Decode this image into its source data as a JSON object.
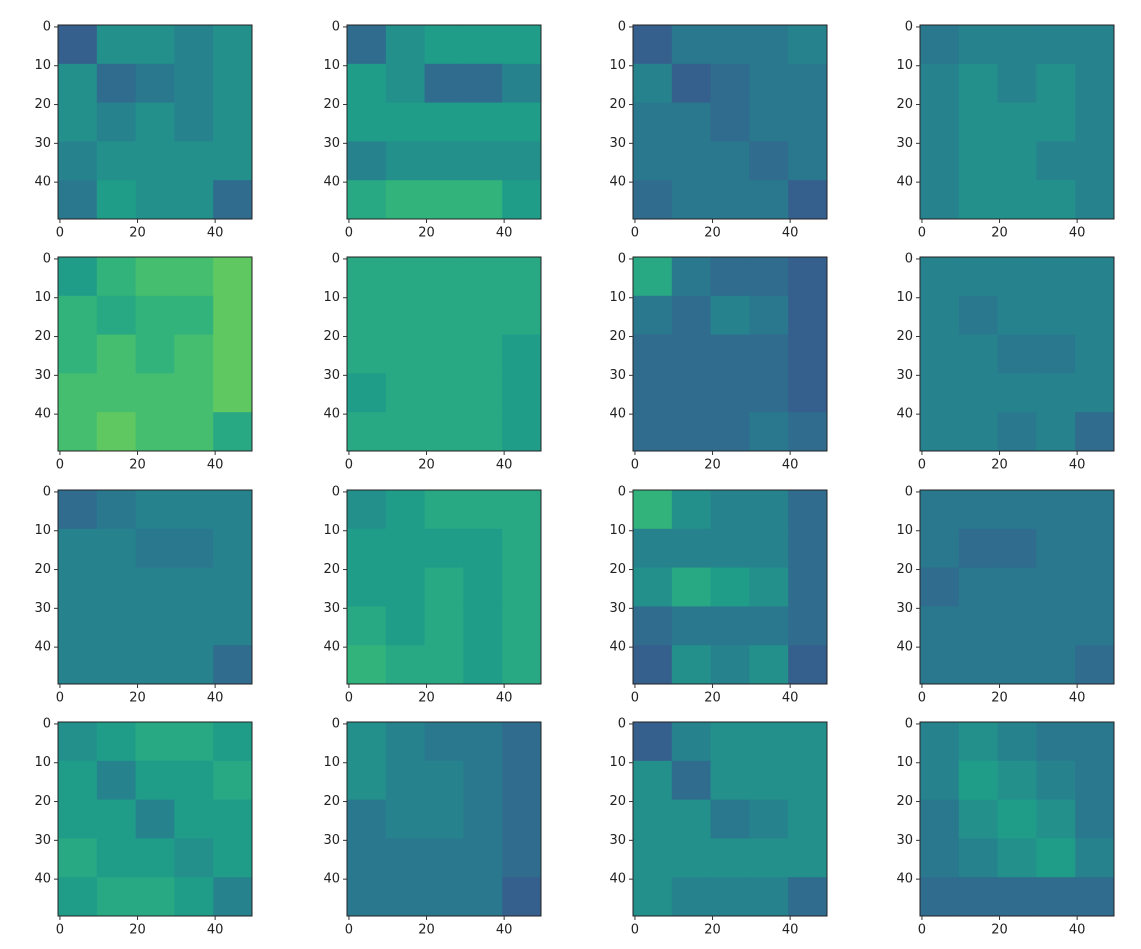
{
  "chart_data": [
    {
      "type": "heatmap",
      "colormap": "viridis",
      "xlim": [
        -0.5,
        49.5
      ],
      "ylim": [
        49.5,
        -0.5
      ],
      "xticks": [
        0,
        20,
        40
      ],
      "yticks": [
        0,
        10,
        20,
        30,
        40
      ],
      "values": [
        [
          0.3,
          0.5,
          0.5,
          0.45,
          0.5
        ],
        [
          0.5,
          0.35,
          0.4,
          0.45,
          0.5
        ],
        [
          0.5,
          0.45,
          0.5,
          0.45,
          0.5
        ],
        [
          0.45,
          0.5,
          0.5,
          0.5,
          0.5
        ],
        [
          0.4,
          0.55,
          0.5,
          0.5,
          0.35
        ]
      ]
    },
    {
      "type": "heatmap",
      "colormap": "viridis",
      "xlim": [
        -0.5,
        49.5
      ],
      "ylim": [
        49.5,
        -0.5
      ],
      "xticks": [
        0,
        20,
        40
      ],
      "yticks": [
        0,
        10,
        20,
        30,
        40
      ],
      "values": [
        [
          0.35,
          0.5,
          0.55,
          0.55,
          0.55
        ],
        [
          0.55,
          0.5,
          0.35,
          0.35,
          0.45
        ],
        [
          0.55,
          0.55,
          0.55,
          0.55,
          0.55
        ],
        [
          0.45,
          0.5,
          0.5,
          0.5,
          0.5
        ],
        [
          0.6,
          0.65,
          0.65,
          0.65,
          0.55
        ]
      ]
    },
    {
      "type": "heatmap",
      "colormap": "viridis",
      "xlim": [
        -0.5,
        49.5
      ],
      "ylim": [
        49.5,
        -0.5
      ],
      "xticks": [
        0,
        20,
        40
      ],
      "yticks": [
        0,
        10,
        20,
        30,
        40
      ],
      "values": [
        [
          0.3,
          0.4,
          0.4,
          0.4,
          0.45
        ],
        [
          0.45,
          0.3,
          0.35,
          0.4,
          0.4
        ],
        [
          0.4,
          0.4,
          0.35,
          0.4,
          0.4
        ],
        [
          0.4,
          0.4,
          0.4,
          0.35,
          0.4
        ],
        [
          0.35,
          0.4,
          0.4,
          0.4,
          0.3
        ]
      ]
    },
    {
      "type": "heatmap",
      "colormap": "viridis",
      "xlim": [
        -0.5,
        49.5
      ],
      "ylim": [
        49.5,
        -0.5
      ],
      "xticks": [
        0,
        20,
        40
      ],
      "yticks": [
        0,
        10,
        20,
        30,
        40
      ],
      "values": [
        [
          0.4,
          0.45,
          0.45,
          0.45,
          0.45
        ],
        [
          0.45,
          0.5,
          0.45,
          0.5,
          0.45
        ],
        [
          0.45,
          0.5,
          0.5,
          0.5,
          0.45
        ],
        [
          0.45,
          0.5,
          0.5,
          0.45,
          0.45
        ],
        [
          0.45,
          0.5,
          0.5,
          0.5,
          0.45
        ]
      ]
    },
    {
      "type": "heatmap",
      "colormap": "viridis",
      "xlim": [
        -0.5,
        49.5
      ],
      "ylim": [
        49.5,
        -0.5
      ],
      "xticks": [
        0,
        20,
        40
      ],
      "yticks": [
        0,
        10,
        20,
        30,
        40
      ],
      "values": [
        [
          0.55,
          0.65,
          0.7,
          0.7,
          0.75
        ],
        [
          0.65,
          0.6,
          0.65,
          0.65,
          0.75
        ],
        [
          0.65,
          0.7,
          0.65,
          0.7,
          0.75
        ],
        [
          0.7,
          0.7,
          0.7,
          0.7,
          0.75
        ],
        [
          0.7,
          0.75,
          0.7,
          0.7,
          0.6
        ]
      ]
    },
    {
      "type": "heatmap",
      "colormap": "viridis",
      "xlim": [
        -0.5,
        49.5
      ],
      "ylim": [
        49.5,
        -0.5
      ],
      "xticks": [
        0,
        20,
        40
      ],
      "yticks": [
        0,
        10,
        20,
        30,
        40
      ],
      "values": [
        [
          0.6,
          0.6,
          0.6,
          0.6,
          0.6
        ],
        [
          0.6,
          0.6,
          0.6,
          0.6,
          0.6
        ],
        [
          0.6,
          0.6,
          0.6,
          0.6,
          0.55
        ],
        [
          0.55,
          0.6,
          0.6,
          0.6,
          0.55
        ],
        [
          0.6,
          0.6,
          0.6,
          0.6,
          0.55
        ]
      ]
    },
    {
      "type": "heatmap",
      "colormap": "viridis",
      "xlim": [
        -0.5,
        49.5
      ],
      "ylim": [
        49.5,
        -0.5
      ],
      "xticks": [
        0,
        20,
        40
      ],
      "yticks": [
        0,
        10,
        20,
        30,
        40
      ],
      "values": [
        [
          0.6,
          0.4,
          0.35,
          0.35,
          0.3
        ],
        [
          0.4,
          0.35,
          0.45,
          0.4,
          0.3
        ],
        [
          0.35,
          0.35,
          0.35,
          0.35,
          0.3
        ],
        [
          0.35,
          0.35,
          0.35,
          0.35,
          0.3
        ],
        [
          0.35,
          0.35,
          0.35,
          0.4,
          0.35
        ]
      ]
    },
    {
      "type": "heatmap",
      "colormap": "viridis",
      "xlim": [
        -0.5,
        49.5
      ],
      "ylim": [
        49.5,
        -0.5
      ],
      "xticks": [
        0,
        20,
        40
      ],
      "yticks": [
        0,
        10,
        20,
        30,
        40
      ],
      "values": [
        [
          0.45,
          0.45,
          0.45,
          0.45,
          0.45
        ],
        [
          0.45,
          0.4,
          0.45,
          0.45,
          0.45
        ],
        [
          0.45,
          0.45,
          0.4,
          0.4,
          0.45
        ],
        [
          0.45,
          0.45,
          0.45,
          0.45,
          0.45
        ],
        [
          0.45,
          0.45,
          0.4,
          0.45,
          0.35
        ]
      ]
    },
    {
      "type": "heatmap",
      "colormap": "viridis",
      "xlim": [
        -0.5,
        49.5
      ],
      "ylim": [
        49.5,
        -0.5
      ],
      "xticks": [
        0,
        20,
        40
      ],
      "yticks": [
        0,
        10,
        20,
        30,
        40
      ],
      "values": [
        [
          0.35,
          0.4,
          0.45,
          0.45,
          0.45
        ],
        [
          0.45,
          0.45,
          0.4,
          0.4,
          0.45
        ],
        [
          0.45,
          0.45,
          0.45,
          0.45,
          0.45
        ],
        [
          0.45,
          0.45,
          0.45,
          0.45,
          0.45
        ],
        [
          0.45,
          0.45,
          0.45,
          0.45,
          0.35
        ]
      ]
    },
    {
      "type": "heatmap",
      "colormap": "viridis",
      "xlim": [
        -0.5,
        49.5
      ],
      "ylim": [
        49.5,
        -0.5
      ],
      "xticks": [
        0,
        20,
        40
      ],
      "yticks": [
        0,
        10,
        20,
        30,
        40
      ],
      "values": [
        [
          0.5,
          0.55,
          0.6,
          0.6,
          0.6
        ],
        [
          0.55,
          0.55,
          0.55,
          0.55,
          0.6
        ],
        [
          0.55,
          0.55,
          0.6,
          0.55,
          0.6
        ],
        [
          0.6,
          0.55,
          0.6,
          0.55,
          0.6
        ],
        [
          0.65,
          0.6,
          0.6,
          0.55,
          0.6
        ]
      ]
    },
    {
      "type": "heatmap",
      "colormap": "viridis",
      "xlim": [
        -0.5,
        49.5
      ],
      "ylim": [
        49.5,
        -0.5
      ],
      "xticks": [
        0,
        20,
        40
      ],
      "yticks": [
        0,
        10,
        20,
        30,
        40
      ],
      "values": [
        [
          0.65,
          0.5,
          0.45,
          0.45,
          0.35
        ],
        [
          0.45,
          0.45,
          0.45,
          0.45,
          0.35
        ],
        [
          0.5,
          0.6,
          0.55,
          0.5,
          0.35
        ],
        [
          0.35,
          0.4,
          0.4,
          0.4,
          0.35
        ],
        [
          0.3,
          0.5,
          0.45,
          0.5,
          0.3
        ]
      ]
    },
    {
      "type": "heatmap",
      "colormap": "viridis",
      "xlim": [
        -0.5,
        49.5
      ],
      "ylim": [
        49.5,
        -0.5
      ],
      "xticks": [
        0,
        20,
        40
      ],
      "yticks": [
        0,
        10,
        20,
        30,
        40
      ],
      "values": [
        [
          0.4,
          0.4,
          0.4,
          0.4,
          0.4
        ],
        [
          0.4,
          0.35,
          0.35,
          0.4,
          0.4
        ],
        [
          0.35,
          0.4,
          0.4,
          0.4,
          0.4
        ],
        [
          0.4,
          0.4,
          0.4,
          0.4,
          0.4
        ],
        [
          0.4,
          0.4,
          0.4,
          0.4,
          0.35
        ]
      ]
    },
    {
      "type": "heatmap",
      "colormap": "viridis",
      "xlim": [
        -0.5,
        49.5
      ],
      "ylim": [
        49.5,
        -0.5
      ],
      "xticks": [
        0,
        20,
        40
      ],
      "yticks": [
        0,
        10,
        20,
        30,
        40
      ],
      "values": [
        [
          0.5,
          0.55,
          0.6,
          0.6,
          0.55
        ],
        [
          0.55,
          0.45,
          0.55,
          0.55,
          0.6
        ],
        [
          0.55,
          0.55,
          0.45,
          0.55,
          0.55
        ],
        [
          0.6,
          0.55,
          0.55,
          0.5,
          0.55
        ],
        [
          0.55,
          0.6,
          0.6,
          0.55,
          0.45
        ]
      ]
    },
    {
      "type": "heatmap",
      "colormap": "viridis",
      "xlim": [
        -0.5,
        49.5
      ],
      "ylim": [
        49.5,
        -0.5
      ],
      "xticks": [
        0,
        20,
        40
      ],
      "yticks": [
        0,
        10,
        20,
        30,
        40
      ],
      "values": [
        [
          0.5,
          0.45,
          0.4,
          0.4,
          0.35
        ],
        [
          0.5,
          0.45,
          0.45,
          0.4,
          0.35
        ],
        [
          0.4,
          0.45,
          0.45,
          0.4,
          0.35
        ],
        [
          0.4,
          0.4,
          0.4,
          0.4,
          0.35
        ],
        [
          0.4,
          0.4,
          0.4,
          0.4,
          0.3
        ]
      ]
    },
    {
      "type": "heatmap",
      "colormap": "viridis",
      "xlim": [
        -0.5,
        49.5
      ],
      "ylim": [
        49.5,
        -0.5
      ],
      "xticks": [
        0,
        20,
        40
      ],
      "yticks": [
        0,
        10,
        20,
        30,
        40
      ],
      "values": [
        [
          0.3,
          0.45,
          0.5,
          0.5,
          0.5
        ],
        [
          0.5,
          0.35,
          0.5,
          0.5,
          0.5
        ],
        [
          0.5,
          0.5,
          0.4,
          0.45,
          0.5
        ],
        [
          0.5,
          0.5,
          0.5,
          0.5,
          0.5
        ],
        [
          0.5,
          0.45,
          0.45,
          0.45,
          0.35
        ]
      ]
    },
    {
      "type": "heatmap",
      "colormap": "viridis",
      "xlim": [
        -0.5,
        49.5
      ],
      "ylim": [
        49.5,
        -0.5
      ],
      "xticks": [
        0,
        20,
        40
      ],
      "yticks": [
        0,
        10,
        20,
        30,
        40
      ],
      "values": [
        [
          0.45,
          0.5,
          0.45,
          0.4,
          0.4
        ],
        [
          0.45,
          0.55,
          0.5,
          0.45,
          0.4
        ],
        [
          0.4,
          0.5,
          0.55,
          0.5,
          0.4
        ],
        [
          0.4,
          0.45,
          0.5,
          0.55,
          0.45
        ],
        [
          0.35,
          0.35,
          0.35,
          0.35,
          0.35
        ]
      ]
    }
  ]
}
